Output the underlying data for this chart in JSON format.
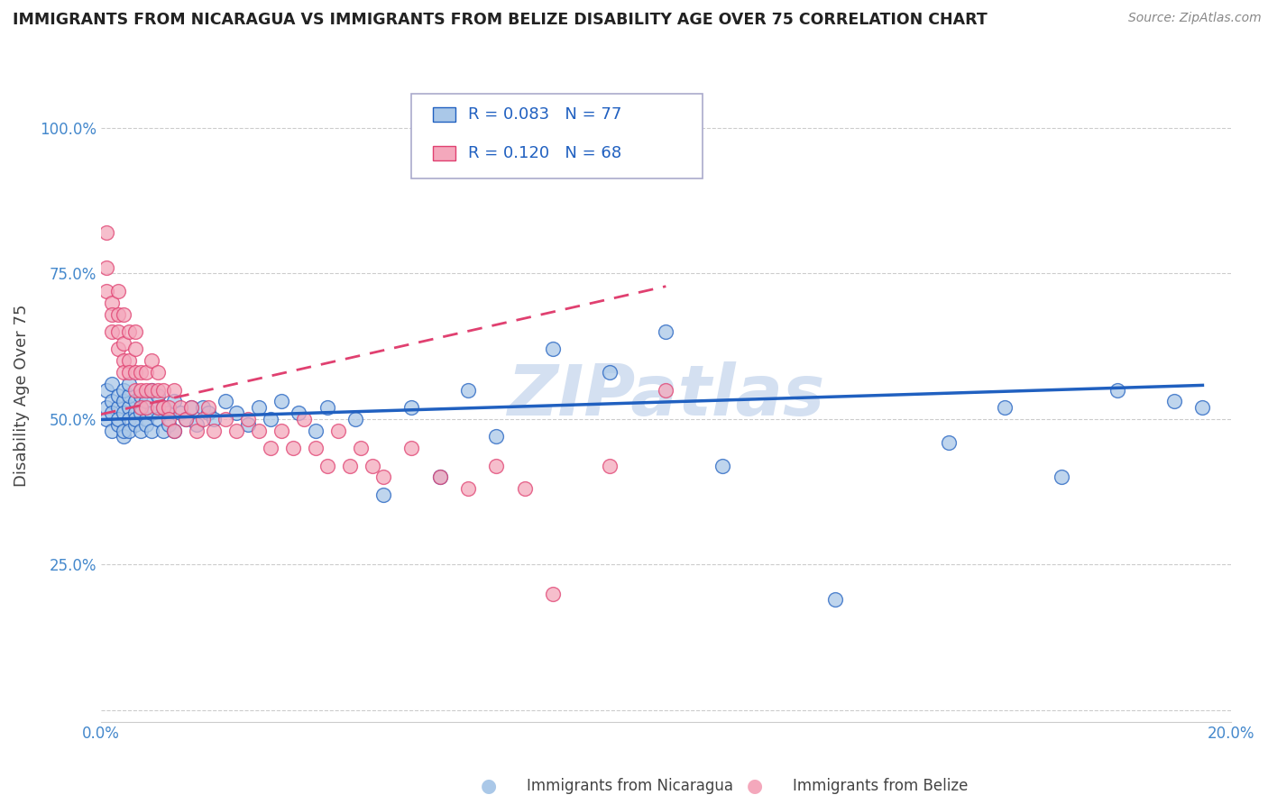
{
  "title": "IMMIGRANTS FROM NICARAGUA VS IMMIGRANTS FROM BELIZE DISABILITY AGE OVER 75 CORRELATION CHART",
  "source": "Source: ZipAtlas.com",
  "ylabel": "Disability Age Over 75",
  "xlabel_blue": "Immigrants from Nicaragua",
  "xlabel_pink": "Immigrants from Belize",
  "r_blue": 0.083,
  "n_blue": 77,
  "r_pink": 0.12,
  "n_pink": 68,
  "color_blue": "#aac8e8",
  "color_pink": "#f4a8bc",
  "line_color_blue": "#2060c0",
  "line_color_pink": "#e04070",
  "tick_color": "#4488cc",
  "xlim": [
    0.0,
    0.2
  ],
  "ylim": [
    -0.02,
    1.1
  ],
  "x_ticks": [
    0.0,
    0.05,
    0.1,
    0.15,
    0.2
  ],
  "x_tick_labels": [
    "0.0%",
    "",
    "",
    "",
    "20.0%"
  ],
  "y_ticks": [
    0.0,
    0.25,
    0.5,
    0.75,
    1.0
  ],
  "y_tick_labels": [
    "",
    "25.0%",
    "50.0%",
    "75.0%",
    "100.0%"
  ],
  "watermark": "ZIPatlas",
  "watermark_color": "#b8cce8",
  "blue_x": [
    0.001,
    0.001,
    0.001,
    0.002,
    0.002,
    0.002,
    0.002,
    0.003,
    0.003,
    0.003,
    0.003,
    0.004,
    0.004,
    0.004,
    0.004,
    0.004,
    0.005,
    0.005,
    0.005,
    0.005,
    0.005,
    0.006,
    0.006,
    0.006,
    0.006,
    0.007,
    0.007,
    0.007,
    0.007,
    0.008,
    0.008,
    0.008,
    0.009,
    0.009,
    0.009,
    0.01,
    0.01,
    0.01,
    0.011,
    0.011,
    0.012,
    0.012,
    0.013,
    0.013,
    0.014,
    0.015,
    0.016,
    0.017,
    0.018,
    0.019,
    0.02,
    0.022,
    0.024,
    0.026,
    0.028,
    0.03,
    0.032,
    0.035,
    0.038,
    0.04,
    0.045,
    0.05,
    0.055,
    0.06,
    0.065,
    0.07,
    0.08,
    0.09,
    0.1,
    0.11,
    0.13,
    0.15,
    0.16,
    0.17,
    0.18,
    0.19,
    0.195
  ],
  "blue_y": [
    0.52,
    0.5,
    0.55,
    0.48,
    0.53,
    0.51,
    0.56,
    0.49,
    0.52,
    0.54,
    0.5,
    0.47,
    0.53,
    0.51,
    0.55,
    0.48,
    0.52,
    0.5,
    0.54,
    0.48,
    0.56,
    0.51,
    0.49,
    0.53,
    0.5,
    0.52,
    0.48,
    0.54,
    0.51,
    0.5,
    0.53,
    0.49,
    0.51,
    0.55,
    0.48,
    0.52,
    0.5,
    0.54,
    0.48,
    0.52,
    0.51,
    0.49,
    0.53,
    0.48,
    0.51,
    0.5,
    0.52,
    0.49,
    0.52,
    0.51,
    0.5,
    0.53,
    0.51,
    0.49,
    0.52,
    0.5,
    0.53,
    0.51,
    0.48,
    0.52,
    0.5,
    0.37,
    0.52,
    0.4,
    0.55,
    0.47,
    0.62,
    0.58,
    0.65,
    0.42,
    0.19,
    0.46,
    0.52,
    0.4,
    0.55,
    0.53,
    0.52
  ],
  "pink_x": [
    0.001,
    0.001,
    0.001,
    0.002,
    0.002,
    0.002,
    0.003,
    0.003,
    0.003,
    0.003,
    0.004,
    0.004,
    0.004,
    0.004,
    0.005,
    0.005,
    0.005,
    0.006,
    0.006,
    0.006,
    0.006,
    0.007,
    0.007,
    0.007,
    0.008,
    0.008,
    0.008,
    0.009,
    0.009,
    0.01,
    0.01,
    0.01,
    0.011,
    0.011,
    0.012,
    0.012,
    0.013,
    0.013,
    0.014,
    0.015,
    0.016,
    0.017,
    0.018,
    0.019,
    0.02,
    0.022,
    0.024,
    0.026,
    0.028,
    0.03,
    0.032,
    0.034,
    0.036,
    0.038,
    0.04,
    0.042,
    0.044,
    0.046,
    0.048,
    0.05,
    0.055,
    0.06,
    0.065,
    0.07,
    0.075,
    0.08,
    0.09,
    0.1
  ],
  "pink_y": [
    0.82,
    0.76,
    0.72,
    0.7,
    0.65,
    0.68,
    0.72,
    0.68,
    0.65,
    0.62,
    0.68,
    0.6,
    0.63,
    0.58,
    0.65,
    0.6,
    0.58,
    0.62,
    0.58,
    0.55,
    0.65,
    0.58,
    0.55,
    0.52,
    0.58,
    0.55,
    0.52,
    0.55,
    0.6,
    0.55,
    0.52,
    0.58,
    0.52,
    0.55,
    0.52,
    0.5,
    0.55,
    0.48,
    0.52,
    0.5,
    0.52,
    0.48,
    0.5,
    0.52,
    0.48,
    0.5,
    0.48,
    0.5,
    0.48,
    0.45,
    0.48,
    0.45,
    0.5,
    0.45,
    0.42,
    0.48,
    0.42,
    0.45,
    0.42,
    0.4,
    0.45,
    0.4,
    0.38,
    0.42,
    0.38,
    0.2,
    0.42,
    0.55
  ]
}
